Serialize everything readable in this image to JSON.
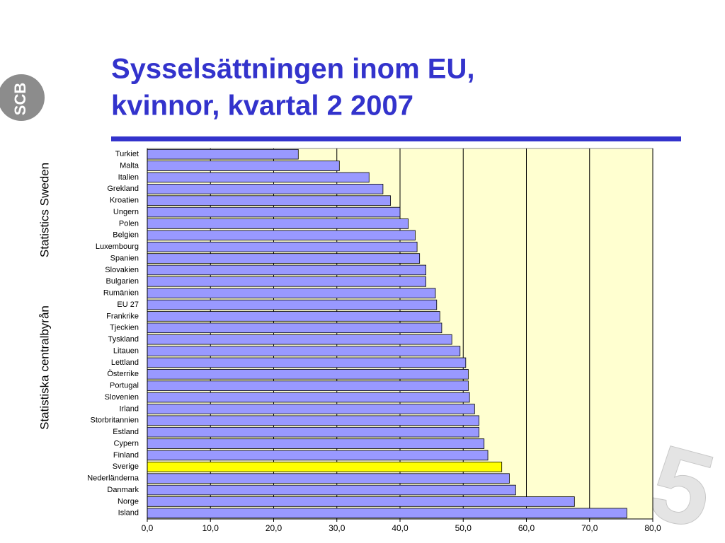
{
  "logo": "SCB",
  "side_texts": [
    "Statistics Sweden",
    "Statistiska centralbyrån"
  ],
  "chart_data": {
    "type": "hbar",
    "title": [
      "Sysselsättningen inom EU,",
      "kvinnor, kvartal 2 2007"
    ],
    "categories": [
      "Turkiet",
      "Malta",
      "Italien",
      "Grekland",
      "Kroatien",
      "Ungern",
      "Polen",
      "Belgien",
      "Luxembourg",
      "Spanien",
      "Slovakien",
      "Bulgarien",
      "Rumänien",
      "EU 27",
      "Frankrike",
      "Tjeckien",
      "Tyskland",
      "Litauen",
      "Lettland",
      "Österrike",
      "Portugal",
      "Slovenien",
      "Irland",
      "Storbritannien",
      "Estland",
      "Cypern",
      "Finland",
      "Sverige",
      "Nederländerna",
      "Danmark",
      "Norge",
      "Island"
    ],
    "values": [
      23.9,
      30.4,
      35.1,
      37.3,
      38.5,
      40.0,
      41.3,
      42.4,
      42.7,
      43.1,
      44.1,
      44.1,
      45.6,
      45.8,
      46.3,
      46.6,
      48.2,
      49.5,
      50.4,
      50.8,
      50.8,
      51.0,
      51.8,
      52.5,
      52.5,
      53.3,
      53.9,
      56.1,
      57.3,
      58.3,
      67.6,
      75.9
    ],
    "colors": [
      "#9999ff",
      "#9999ff",
      "#9999ff",
      "#9999ff",
      "#9999ff",
      "#9999ff",
      "#9999ff",
      "#9999ff",
      "#9999ff",
      "#9999ff",
      "#9999ff",
      "#9999ff",
      "#9999ff",
      "#9999ff",
      "#9999ff",
      "#9999ff",
      "#9999ff",
      "#9999ff",
      "#9999ff",
      "#9999ff",
      "#9999ff",
      "#9999ff",
      "#9999ff",
      "#9999ff",
      "#9999ff",
      "#9999ff",
      "#9999ff",
      "#ffff00",
      "#9999ff",
      "#9999ff",
      "#9999ff",
      "#9999ff"
    ],
    "xlim": [
      0,
      80
    ],
    "xticks": [
      {
        "value": 0,
        "label": "0,0"
      },
      {
        "value": 10,
        "label": "10,0"
      },
      {
        "value": 20,
        "label": "20,0"
      },
      {
        "value": 30,
        "label": "30,0"
      },
      {
        "value": 40,
        "label": "40,0"
      },
      {
        "value": 50,
        "label": "50,0"
      },
      {
        "value": 60,
        "label": "60,0"
      },
      {
        "value": 70,
        "label": "70,0"
      },
      {
        "value": 80,
        "label": "80,0"
      }
    ],
    "grid": true,
    "plot_background": "#ffffd0"
  }
}
